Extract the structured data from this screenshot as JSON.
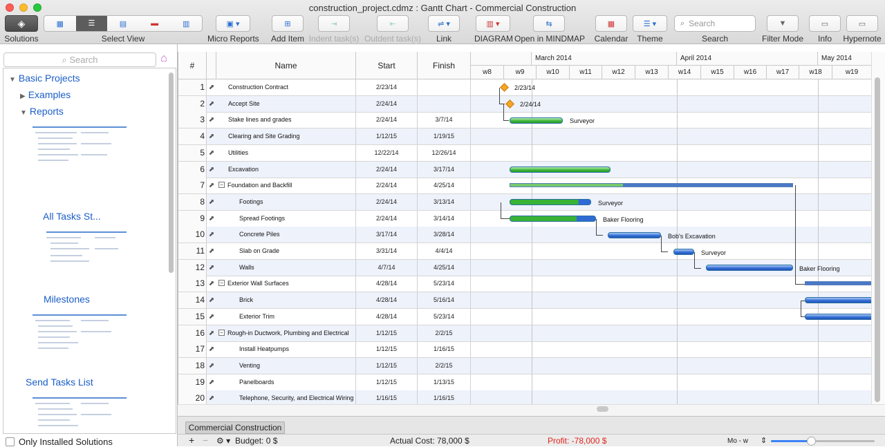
{
  "window": {
    "title": "construction_project.cdmz : Gantt Chart - Commercial Construction"
  },
  "toolbar": {
    "solutions": "Solutions",
    "select_view": "Select View",
    "micro_reports": "Micro Reports",
    "add_item": "Add Item",
    "indent": "Indent task(s)",
    "outdent": "Outdent task(s)",
    "link": "Link",
    "diagram": "DIAGRAM",
    "open_mindmap": "Open in MINDMAP",
    "calendar": "Calendar",
    "theme": "Theme",
    "search_placeholder": "Search",
    "search_label": "Search",
    "filter_mode": "Filter Mode",
    "info": "Info",
    "hypernote": "Hypernote"
  },
  "sidebar": {
    "search_placeholder": "Search",
    "basic_projects": "Basic Projects",
    "examples": "Examples",
    "reports": "Reports",
    "report_names": [
      "All Tasks St...",
      "Milestones",
      "Send Tasks List"
    ],
    "only_installed": "Only Installed Solutions"
  },
  "grid": {
    "headers": {
      "num": "#",
      "name": "Name",
      "start": "Start",
      "finish": "Finish"
    },
    "months": [
      "March 2014",
      "April 2014",
      "May 2014"
    ],
    "weeks": [
      "w8",
      "w9",
      "w10",
      "w11",
      "w12",
      "w13",
      "w14",
      "w15",
      "w16",
      "w17",
      "w18",
      "w19"
    ],
    "rows": [
      {
        "num": "1",
        "name": "Construction Contract",
        "start": "2/23/14",
        "finish": "",
        "indent": 0
      },
      {
        "num": "2",
        "name": "Accept Site",
        "start": "2/24/14",
        "finish": "",
        "indent": 0
      },
      {
        "num": "3",
        "name": "Stake lines and grades",
        "start": "2/24/14",
        "finish": "3/7/14",
        "indent": 0
      },
      {
        "num": "4",
        "name": "Clearing and Site Grading",
        "start": "1/12/15",
        "finish": "1/19/15",
        "indent": 0
      },
      {
        "num": "5",
        "name": "Utilities",
        "start": "12/22/14",
        "finish": "12/26/14",
        "indent": 0
      },
      {
        "num": "6",
        "name": "Excavation",
        "start": "2/24/14",
        "finish": "3/17/14",
        "indent": 0
      },
      {
        "num": "7",
        "name": "Foundation and Backfill",
        "start": "2/24/14",
        "finish": "4/25/14",
        "indent": 0,
        "group": true
      },
      {
        "num": "8",
        "name": "Footings",
        "start": "2/24/14",
        "finish": "3/13/14",
        "indent": 1
      },
      {
        "num": "9",
        "name": "Spread Footings",
        "start": "2/24/14",
        "finish": "3/14/14",
        "indent": 1
      },
      {
        "num": "10",
        "name": "Concrete Piles",
        "start": "3/17/14",
        "finish": "3/28/14",
        "indent": 1
      },
      {
        "num": "11",
        "name": "Slab on Grade",
        "start": "3/31/14",
        "finish": "4/4/14",
        "indent": 1
      },
      {
        "num": "12",
        "name": "Walls",
        "start": "4/7/14",
        "finish": "4/25/14",
        "indent": 1
      },
      {
        "num": "13",
        "name": "Exterior Wall Surfaces",
        "start": "4/28/14",
        "finish": "5/23/14",
        "indent": 0,
        "group": true
      },
      {
        "num": "14",
        "name": "Brick",
        "start": "4/28/14",
        "finish": "5/16/14",
        "indent": 1
      },
      {
        "num": "15",
        "name": "Exterior Trim",
        "start": "4/28/14",
        "finish": "5/23/14",
        "indent": 1
      },
      {
        "num": "16",
        "name": "Rough-in Ductwork, Plumbing and Electrical",
        "start": "1/12/15",
        "finish": "2/2/15",
        "indent": 0,
        "group": true
      },
      {
        "num": "17",
        "name": "Install Heatpumps",
        "start": "1/12/15",
        "finish": "1/16/15",
        "indent": 1
      },
      {
        "num": "18",
        "name": "Venting",
        "start": "1/12/15",
        "finish": "2/2/15",
        "indent": 1
      },
      {
        "num": "19",
        "name": "Panelboards",
        "start": "1/12/15",
        "finish": "1/13/15",
        "indent": 1
      },
      {
        "num": "20",
        "name": "Telephone, Security, and Electrical Wiring",
        "start": "1/16/15",
        "finish": "1/16/15",
        "indent": 1
      }
    ]
  },
  "gantt_labels": {
    "m1": "2/23/14",
    "m2": "2/24/14",
    "r3": "Surveyor",
    "r8": "Surveyor",
    "r9": "Baker Flooring",
    "r10": "Bob's Excavation",
    "r11": "Surveyor",
    "r12": "Baker Flooring"
  },
  "sheet_tab": "Commercial Construction",
  "status": {
    "budget": "Budget: 0 $",
    "actual_cost": "Actual Cost: 78,000 $",
    "profit": "Profit: -78,000 $",
    "scale": "Mo - w"
  },
  "colors": {
    "profit": "#e0241b",
    "accent": "#1a5ec8",
    "bar_green": "#38b335",
    "bar_blue": "#2f6bd4",
    "milestone": "#f5a623"
  }
}
